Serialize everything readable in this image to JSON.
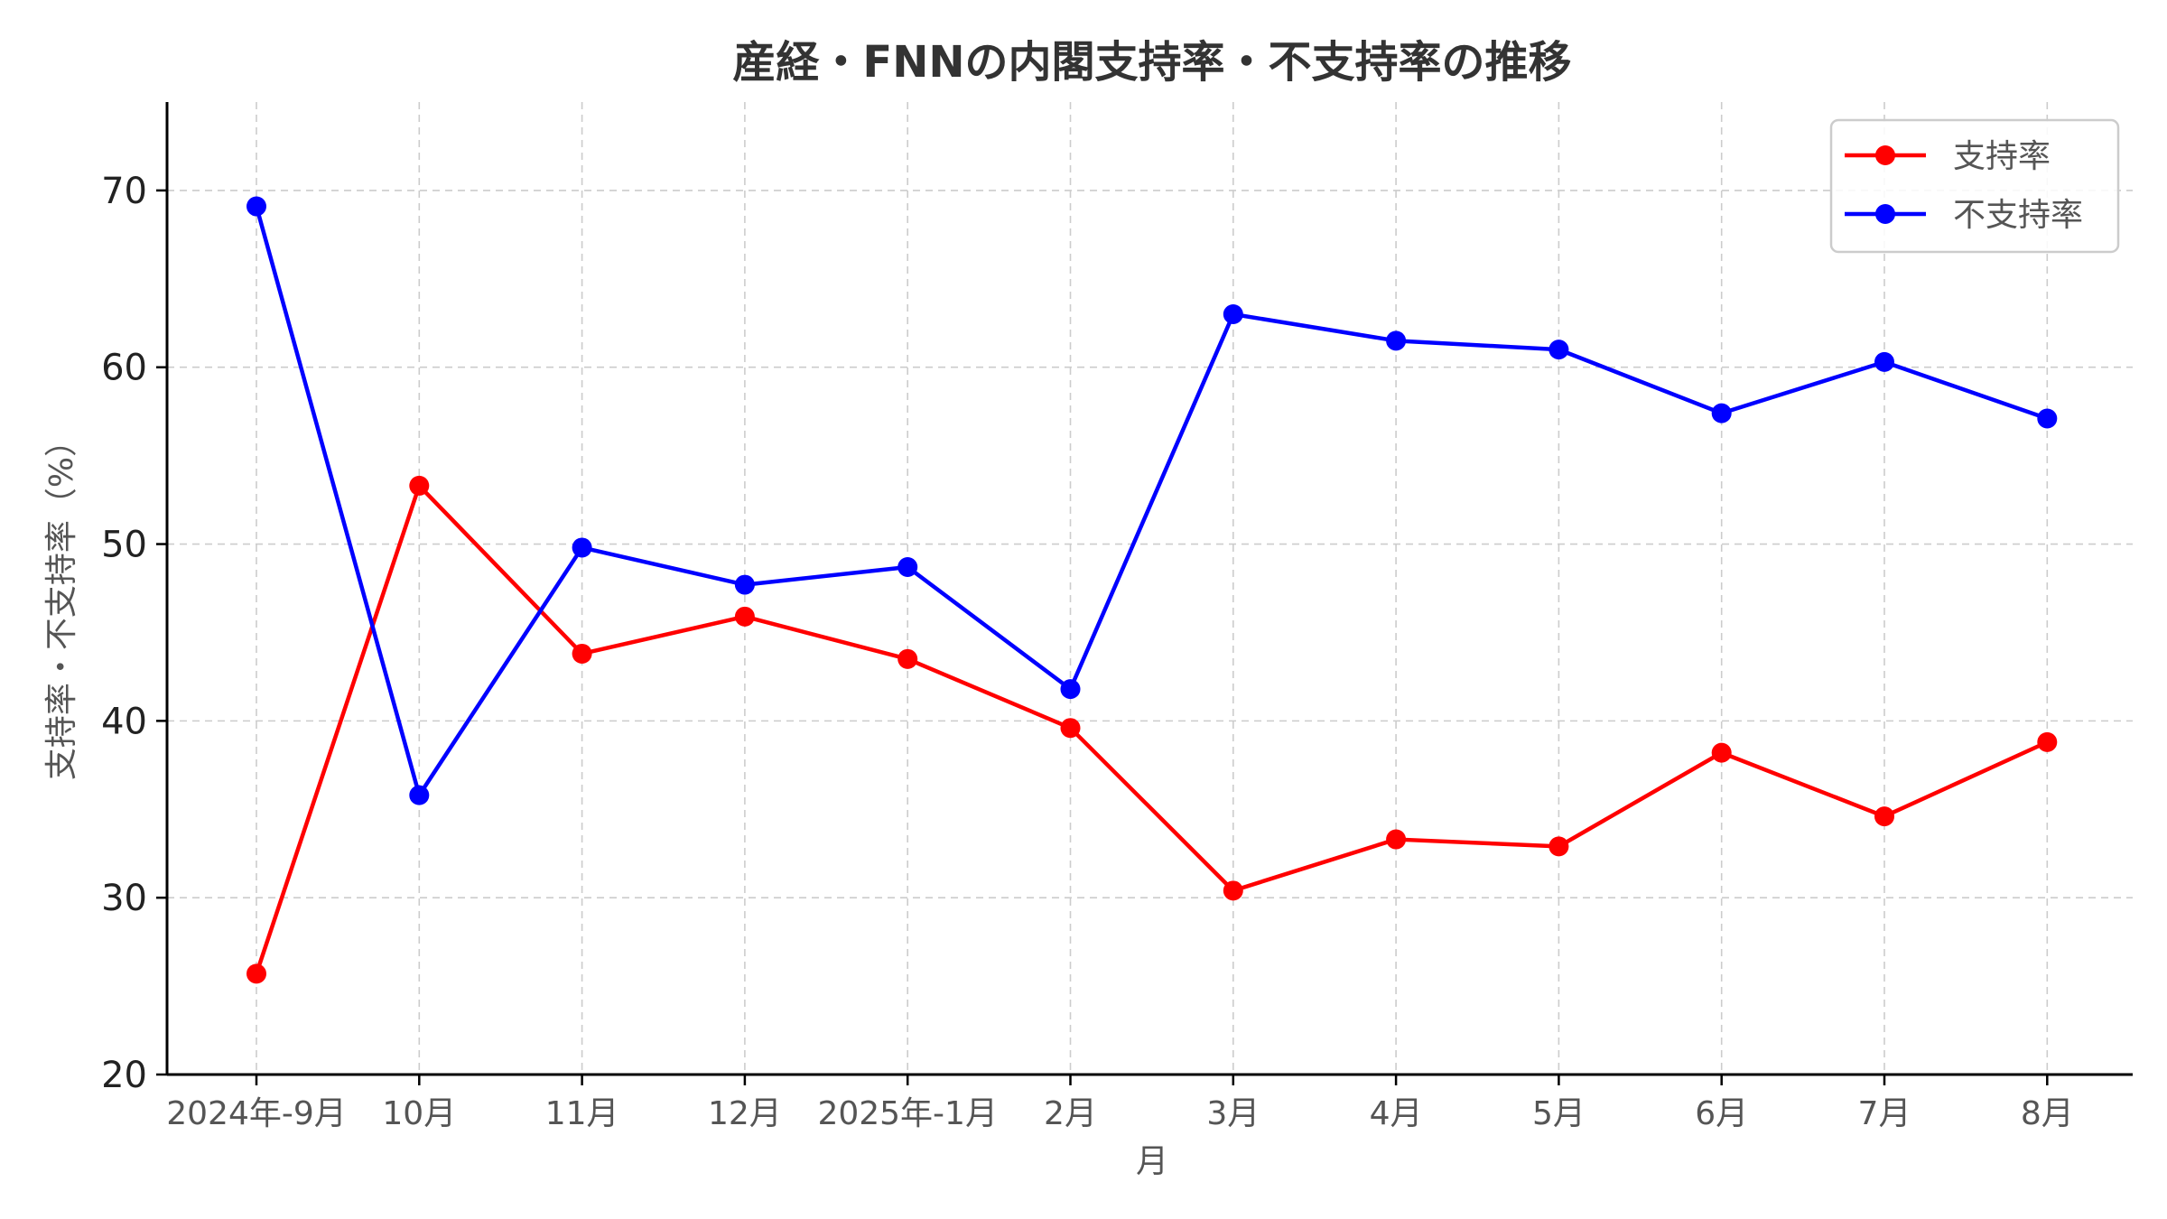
{
  "chart_data": {
    "type": "line",
    "title": "産経・FNNの内閣支持率・不支持率の推移",
    "xlabel": "月",
    "ylabel": "支持率・不支持率（%）",
    "categories": [
      "2024年-9月",
      "10月",
      "11月",
      "12月",
      "2025年-1月",
      "2月",
      "3月",
      "4月",
      "5月",
      "6月",
      "7月",
      "8月"
    ],
    "ylim": [
      20,
      75
    ],
    "yticks": [
      20,
      30,
      40,
      50,
      60,
      70
    ],
    "grid": true,
    "legend_position": "top-right",
    "series": [
      {
        "name": "支持率",
        "color": "#ff0000",
        "marker": "circle",
        "values": [
          25.7,
          53.3,
          43.8,
          45.9,
          43.5,
          39.6,
          30.4,
          33.3,
          32.9,
          38.2,
          34.6,
          38.8
        ]
      },
      {
        "name": "不支持率",
        "color": "#0000ff",
        "marker": "circle",
        "values": [
          69.1,
          35.8,
          49.8,
          47.7,
          48.7,
          41.8,
          63.0,
          61.5,
          61.0,
          57.4,
          60.3,
          57.1
        ]
      }
    ]
  }
}
